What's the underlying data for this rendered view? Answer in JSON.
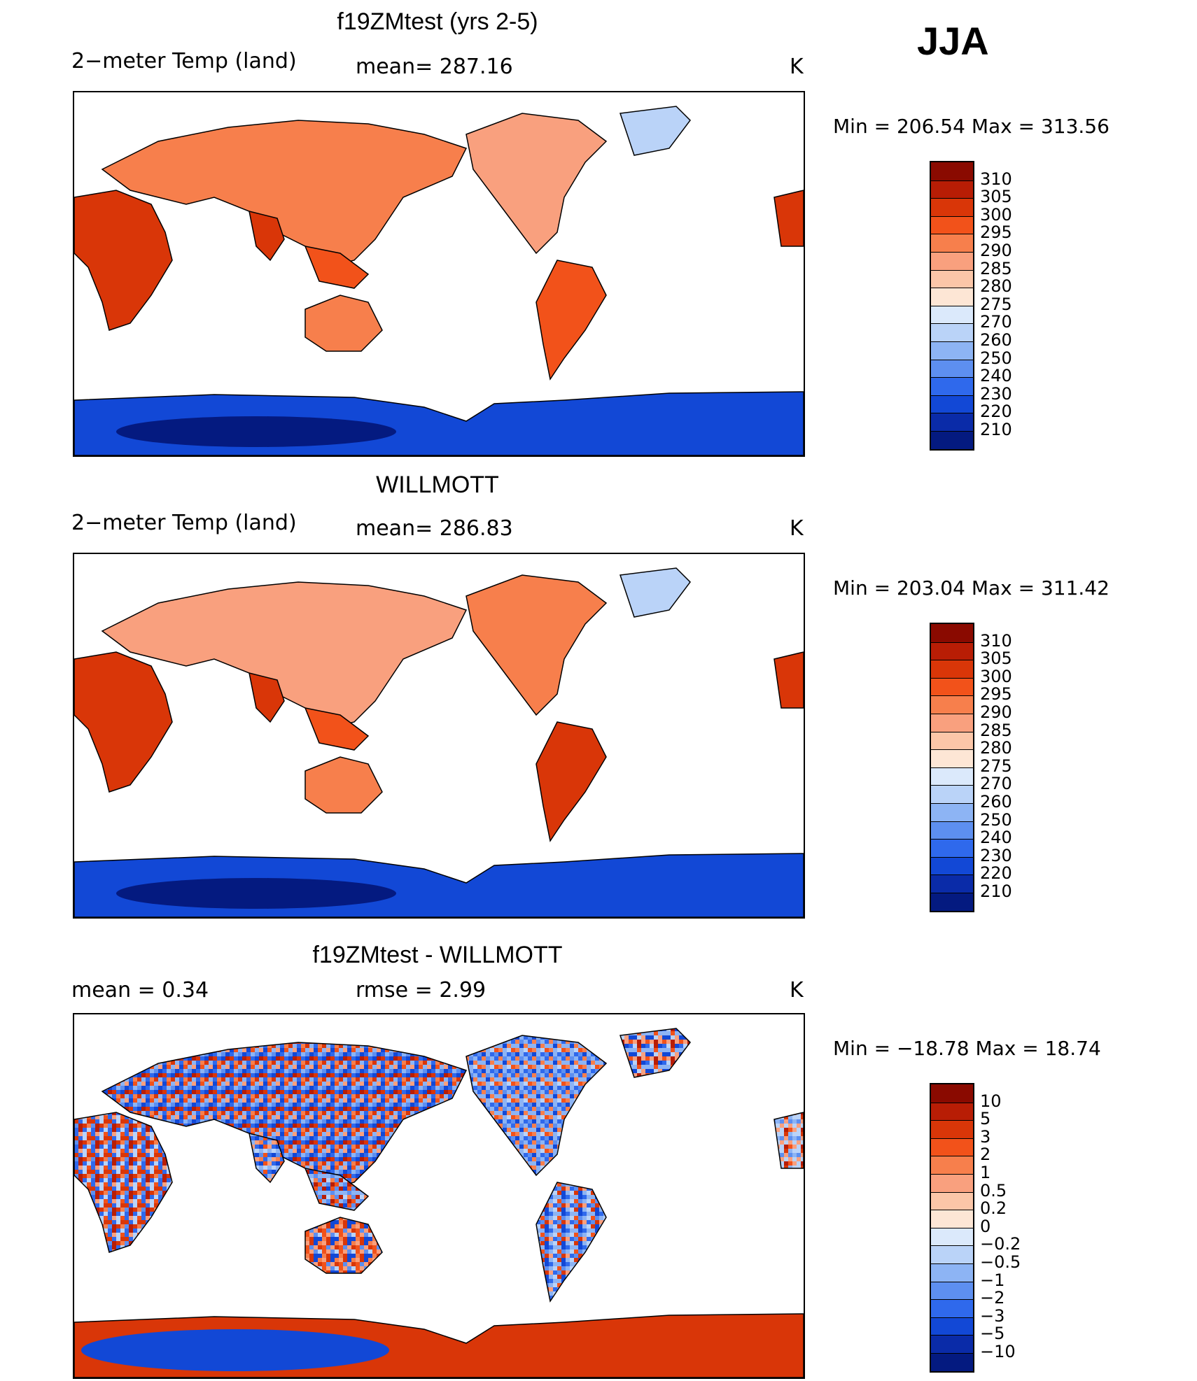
{
  "season": "JJA",
  "panels": [
    {
      "title": "f19ZMtest (yrs 2-5)",
      "label_left": "2−meter Temp (land)",
      "label_mid": "mean=  287.16",
      "units": "K",
      "minmax": "Min  =  206.54  Max  =  313.56",
      "colorbar": {
        "labels": [
          "310",
          "305",
          "300",
          "295",
          "290",
          "285",
          "280",
          "275",
          "270",
          "260",
          "250",
          "240",
          "230",
          "220",
          "210"
        ],
        "colors": [
          "#8a0a00",
          "#b81d05",
          "#d93608",
          "#f2521a",
          "#f77f4c",
          "#f9a07e",
          "#fbc6a8",
          "#fde6d5",
          "#dbe9fb",
          "#bad3f8",
          "#8db4f4",
          "#5d8ff0",
          "#2f69ec",
          "#1248d6",
          "#0a2ba8",
          "#041a80"
        ]
      }
    },
    {
      "title": "WILLMOTT",
      "label_left": "2−meter Temp (land)",
      "label_mid": "mean=  286.83",
      "units": "K",
      "minmax": "Min  =  203.04  Max  =  311.42",
      "colorbar": {
        "labels": [
          "310",
          "305",
          "300",
          "295",
          "290",
          "285",
          "280",
          "275",
          "270",
          "260",
          "250",
          "240",
          "230",
          "220",
          "210"
        ],
        "colors": [
          "#8a0a00",
          "#b81d05",
          "#d93608",
          "#f2521a",
          "#f77f4c",
          "#f9a07e",
          "#fbc6a8",
          "#fde6d5",
          "#dbe9fb",
          "#bad3f8",
          "#8db4f4",
          "#5d8ff0",
          "#2f69ec",
          "#1248d6",
          "#0a2ba8",
          "#041a80"
        ]
      }
    },
    {
      "title": "f19ZMtest - WILLMOTT",
      "label_left": "mean  =     0.34",
      "label_mid": "rmse  =     2.99",
      "units": "K",
      "minmax": "Min  =  −18.78  Max  =     18.74",
      "colorbar": {
        "labels": [
          "10",
          "5",
          "3",
          "2",
          "1",
          "0.5",
          "0.2",
          "0",
          "−0.2",
          "−0.5",
          "−1",
          "−2",
          "−3",
          "−5",
          "−10"
        ],
        "colors": [
          "#8a0a00",
          "#b81d05",
          "#d93608",
          "#f2521a",
          "#f77f4c",
          "#f9a07e",
          "#fbc6a8",
          "#fde6d5",
          "#dbe9fb",
          "#bad3f8",
          "#8db4f4",
          "#5d8ff0",
          "#2f69ec",
          "#1248d6",
          "#0a2ba8",
          "#041a80"
        ]
      }
    }
  ]
}
